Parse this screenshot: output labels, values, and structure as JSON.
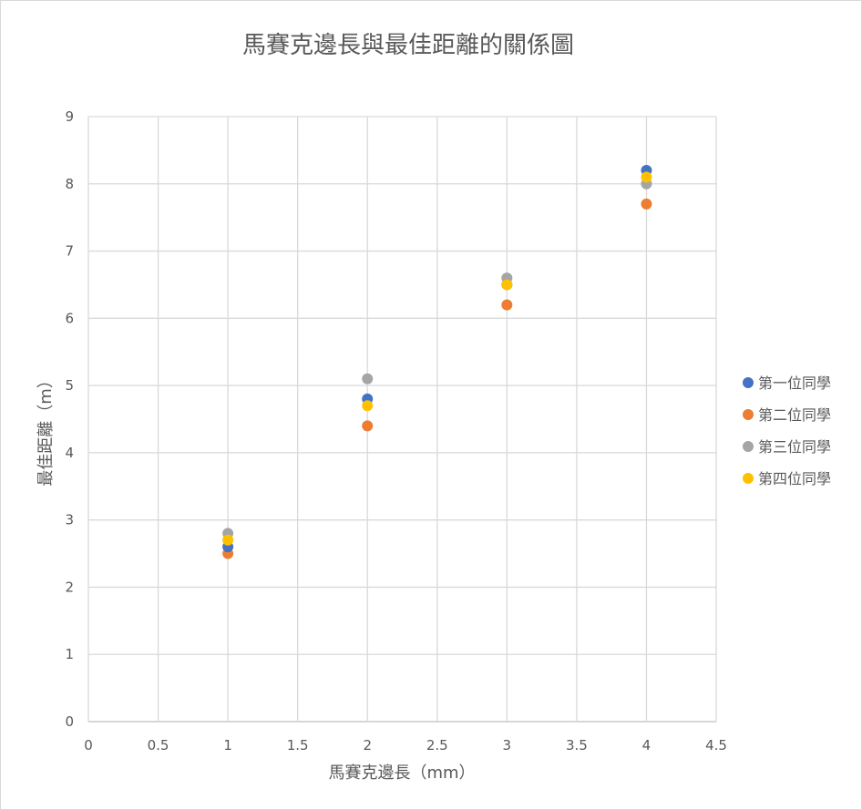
{
  "chart_data": {
    "type": "scatter",
    "title": "馬賽克邊長與最佳距離的關係圖",
    "xlabel": "馬賽克邊長（mm）",
    "ylabel": "最佳距離（m）",
    "xlim": [
      0,
      4.5
    ],
    "ylim": [
      0,
      9
    ],
    "x_ticks": [
      "0",
      "0.5",
      "1",
      "1.5",
      "2",
      "2.5",
      "3",
      "3.5",
      "4",
      "4.5"
    ],
    "y_ticks": [
      "0",
      "1",
      "2",
      "3",
      "4",
      "5",
      "6",
      "7",
      "8",
      "9"
    ],
    "grid": true,
    "legend_position": "right",
    "series": [
      {
        "name": "第一位同學",
        "color": "#4472C4",
        "x": [
          1,
          2,
          3,
          4
        ],
        "y": [
          2.6,
          4.8,
          6.5,
          8.2
        ]
      },
      {
        "name": "第二位同學",
        "color": "#ED7D31",
        "x": [
          1,
          2,
          3,
          4
        ],
        "y": [
          2.5,
          4.4,
          6.2,
          7.7
        ]
      },
      {
        "name": "第三位同學",
        "color": "#A5A5A5",
        "x": [
          1,
          2,
          3,
          4
        ],
        "y": [
          2.8,
          5.1,
          6.6,
          8.0
        ]
      },
      {
        "name": "第四位同學",
        "color": "#FFC000",
        "x": [
          1,
          2,
          3,
          4
        ],
        "y": [
          2.7,
          4.7,
          6.5,
          8.1
        ]
      }
    ]
  }
}
